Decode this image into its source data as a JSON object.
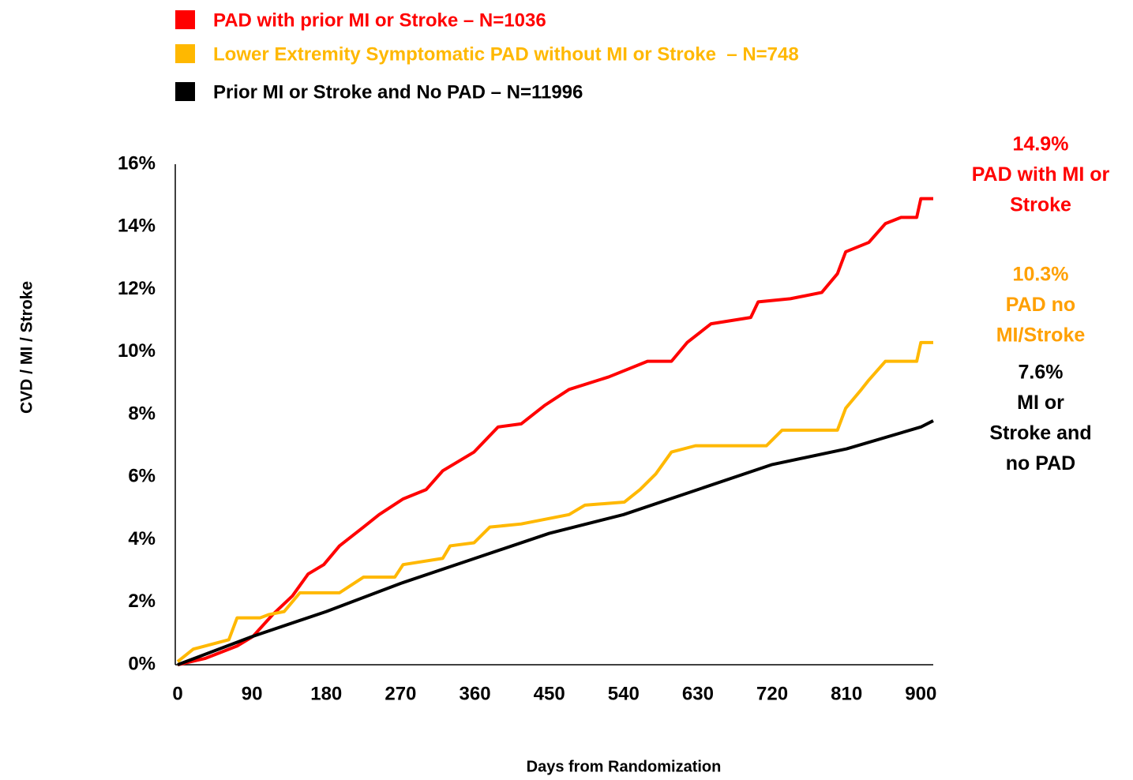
{
  "chart_data": {
    "type": "line",
    "xlabel": "Days from Randomization",
    "ylabel": "CVD / MI / Stroke",
    "xlim": [
      0,
      915
    ],
    "ylim": [
      0,
      16
    ],
    "xticks": [
      0,
      90,
      180,
      270,
      360,
      450,
      540,
      630,
      720,
      810,
      900
    ],
    "yticks": [
      {
        "value": 0,
        "label": "0%"
      },
      {
        "value": 2,
        "label": "2%"
      },
      {
        "value": 4,
        "label": "4%"
      },
      {
        "value": 6,
        "label": "6%"
      },
      {
        "value": 8,
        "label": "8%"
      },
      {
        "value": 10,
        "label": "10%"
      },
      {
        "value": 12,
        "label": "12%"
      },
      {
        "value": 14,
        "label": "14%"
      },
      {
        "value": 16,
        "label": "16%"
      }
    ],
    "series": [
      {
        "name": "PAD with prior MI or Stroke – N=1036",
        "color": "#ff0000",
        "x": [
          0,
          33,
          72,
          91,
          115,
          139,
          158,
          177,
          196,
          225,
          244,
          273,
          301,
          321,
          359,
          388,
          416,
          445,
          474,
          522,
          569,
          598,
          617,
          646,
          694,
          703,
          742,
          780,
          799,
          809,
          837,
          857,
          876,
          895,
          900,
          915
        ],
        "values": [
          0,
          0.2,
          0.6,
          0.9,
          1.6,
          2.2,
          2.9,
          3.2,
          3.8,
          4.4,
          4.8,
          5.3,
          5.6,
          6.2,
          6.8,
          7.6,
          7.7,
          8.3,
          8.8,
          9.2,
          9.7,
          9.7,
          10.3,
          10.9,
          11.1,
          11.6,
          11.7,
          11.9,
          12.5,
          13.2,
          13.5,
          14.1,
          14.3,
          14.3,
          14.9,
          14.9
        ]
      },
      {
        "name": "Lower Extremity Symptomatic PAD without MI or Stroke  – N=748",
        "color": "#ffb800",
        "x": [
          0,
          19,
          62,
          72,
          100,
          110,
          129,
          148,
          196,
          225,
          263,
          273,
          321,
          330,
          359,
          378,
          416,
          474,
          493,
          541,
          560,
          579,
          598,
          627,
          713,
          732,
          799,
          809,
          828,
          837,
          857,
          895,
          900,
          915
        ],
        "values": [
          0.1,
          0.5,
          0.8,
          1.5,
          1.5,
          1.6,
          1.7,
          2.3,
          2.3,
          2.8,
          2.8,
          3.2,
          3.4,
          3.8,
          3.9,
          4.4,
          4.5,
          4.8,
          5.1,
          5.2,
          5.6,
          6.1,
          6.8,
          7.0,
          7.0,
          7.5,
          7.5,
          8.2,
          8.8,
          9.1,
          9.7,
          9.7,
          10.3,
          10.3
        ]
      },
      {
        "name": "Prior MI or Stroke and No PAD – N=11996",
        "color": "#000000",
        "x": [
          0,
          90,
          180,
          270,
          360,
          450,
          540,
          630,
          720,
          810,
          900,
          915
        ],
        "values": [
          0,
          0.9,
          1.7,
          2.6,
          3.4,
          4.2,
          4.8,
          5.6,
          6.4,
          6.9,
          7.6,
          7.8
        ]
      }
    ],
    "annotations": [
      {
        "color": "#ff0000",
        "lines": [
          "14.9%",
          "PAD with MI or",
          "Stroke"
        ]
      },
      {
        "color": "#ffa000",
        "lines": [
          "10.3%",
          "PAD no",
          "MI/Stroke"
        ]
      },
      {
        "color": "#000000",
        "lines": [
          "7.6%",
          "MI or",
          "Stroke and",
          "no PAD"
        ]
      }
    ]
  }
}
